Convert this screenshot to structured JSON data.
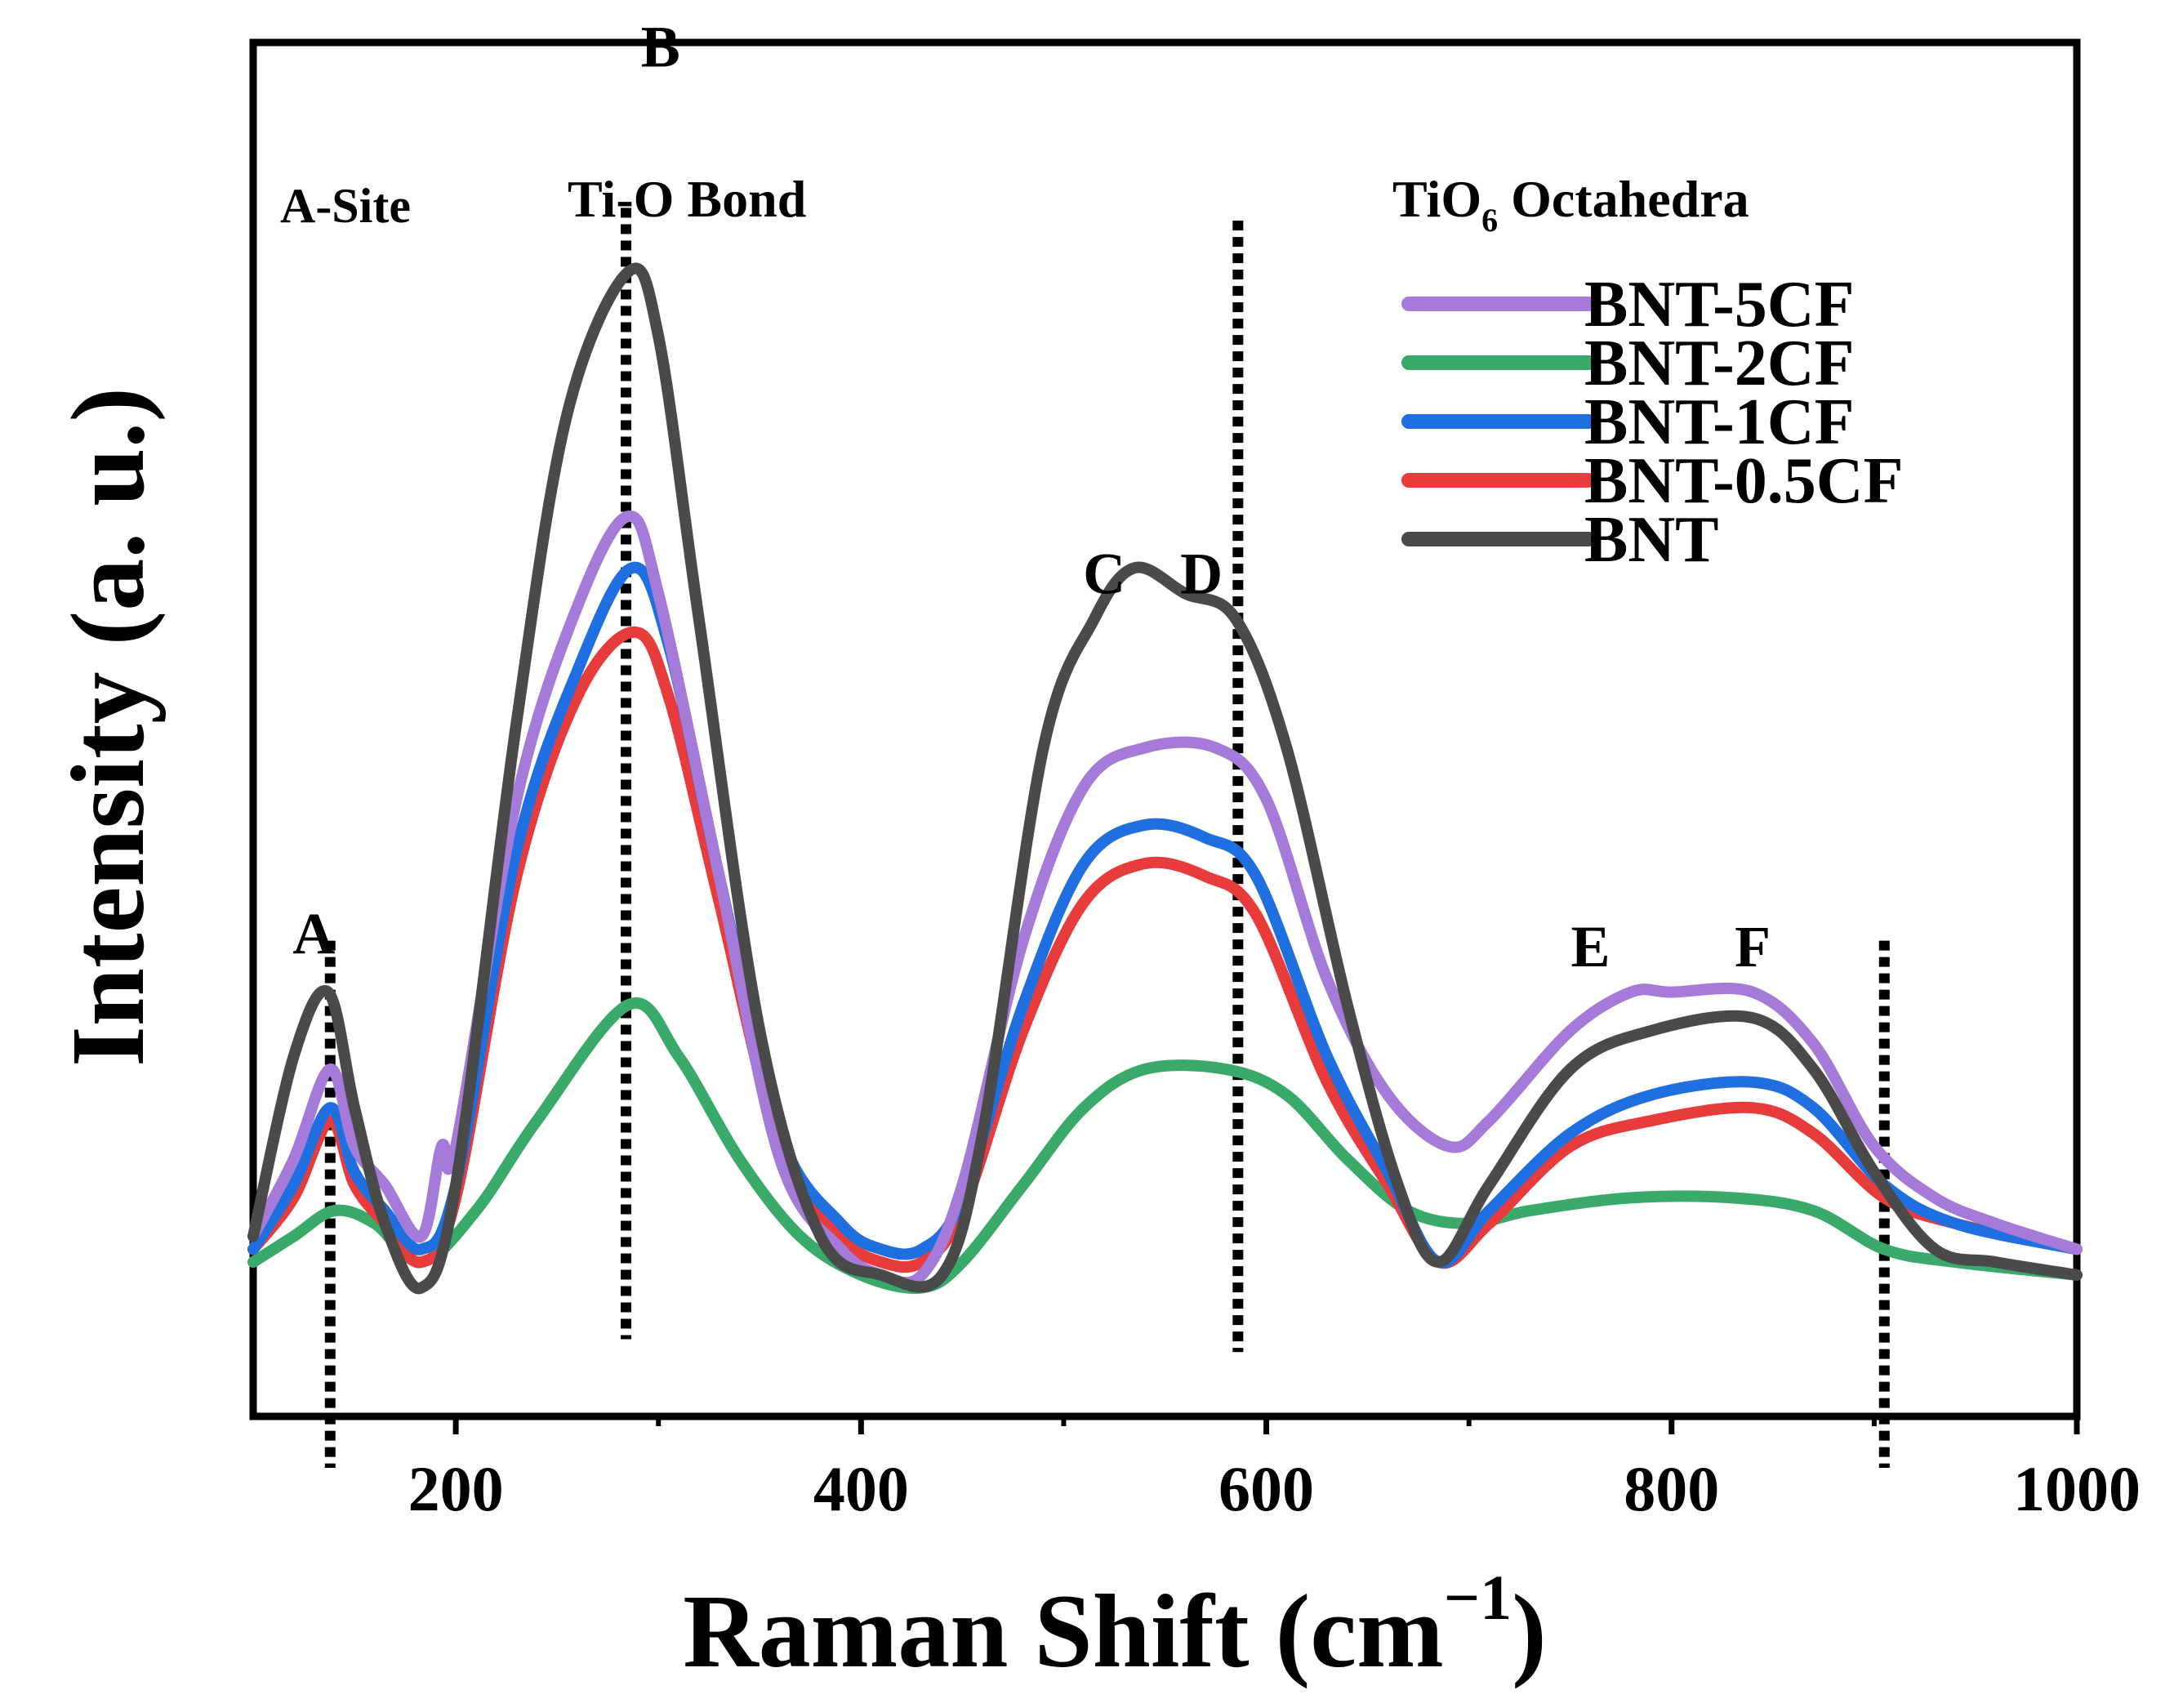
{
  "chart_data": {
    "type": "line",
    "xlabel": "Raman Shift (cm",
    "xlabel_sup": "−1",
    "xlabel_close": ")",
    "ylabel": "Intensity (a. u.)",
    "xlim": [
      100,
      1000
    ],
    "ylim": [
      0,
      100
    ],
    "x_ticks": [
      200,
      400,
      600,
      800,
      1000
    ],
    "y_ticks_shown": false,
    "grid": false,
    "legend_position": "top-right",
    "region_labels": [
      {
        "id": "a-site",
        "text": "A-Site"
      },
      {
        "id": "ti-o",
        "text": "Ti-O Bond"
      },
      {
        "id": "tio6",
        "text": "TiO",
        "sub": "6",
        "rest": " Octahedra"
      }
    ],
    "reference_lines_x": [
      138,
      284,
      586,
      905
    ],
    "peak_labels": [
      {
        "label": "A",
        "x": 130,
        "y": 36
      },
      {
        "label": "B",
        "x": 301,
        "y": 105
      },
      {
        "label": "C",
        "x": 520,
        "y": 64
      },
      {
        "label": "D",
        "x": 568,
        "y": 64
      },
      {
        "label": "E",
        "x": 760,
        "y": 35
      },
      {
        "label": "F",
        "x": 840,
        "y": 35
      }
    ],
    "series": [
      {
        "name": "BNT-5CF",
        "color": "#a57ad8",
        "points": [
          [
            100,
            14
          ],
          [
            120,
            20
          ],
          [
            138,
            27
          ],
          [
            150,
            21
          ],
          [
            165,
            18
          ],
          [
            183,
            14
          ],
          [
            193,
            21
          ],
          [
            200,
            21
          ],
          [
            230,
            48
          ],
          [
            260,
            63
          ],
          [
            285,
            70
          ],
          [
            300,
            64
          ],
          [
            330,
            42
          ],
          [
            360,
            20
          ],
          [
            390,
            13
          ],
          [
            410,
            11
          ],
          [
            430,
            11
          ],
          [
            450,
            18
          ],
          [
            480,
            37
          ],
          [
            510,
            49
          ],
          [
            540,
            52
          ],
          [
            575,
            52
          ],
          [
            600,
            48
          ],
          [
            630,
            34
          ],
          [
            660,
            25
          ],
          [
            690,
            21
          ],
          [
            710,
            23
          ],
          [
            750,
            30
          ],
          [
            780,
            33
          ],
          [
            800,
            33
          ],
          [
            840,
            33
          ],
          [
            870,
            29
          ],
          [
            900,
            21
          ],
          [
            930,
            17
          ],
          [
            960,
            15
          ],
          [
            1000,
            13
          ]
        ]
      },
      {
        "name": "BNT-2CF",
        "color": "#3aaa6a",
        "points": [
          [
            100,
            12
          ],
          [
            120,
            14
          ],
          [
            140,
            16
          ],
          [
            160,
            15
          ],
          [
            183,
            12
          ],
          [
            210,
            16
          ],
          [
            240,
            23
          ],
          [
            285,
            32
          ],
          [
            310,
            28
          ],
          [
            340,
            20
          ],
          [
            370,
            14
          ],
          [
            400,
            11
          ],
          [
            430,
            10
          ],
          [
            450,
            12
          ],
          [
            480,
            18
          ],
          [
            510,
            24
          ],
          [
            540,
            27
          ],
          [
            580,
            27
          ],
          [
            610,
            25
          ],
          [
            640,
            20
          ],
          [
            670,
            16
          ],
          [
            700,
            15
          ],
          [
            730,
            16
          ],
          [
            780,
            17
          ],
          [
            830,
            17
          ],
          [
            870,
            16
          ],
          [
            905,
            13
          ],
          [
            940,
            12
          ],
          [
            1000,
            11
          ]
        ]
      },
      {
        "name": "BNT-1CF",
        "color": "#1f6fe0",
        "points": [
          [
            100,
            13
          ],
          [
            120,
            18
          ],
          [
            138,
            24
          ],
          [
            150,
            19
          ],
          [
            165,
            16
          ],
          [
            183,
            13
          ],
          [
            200,
            18
          ],
          [
            230,
            44
          ],
          [
            260,
            58
          ],
          [
            287,
            66
          ],
          [
            305,
            60
          ],
          [
            330,
            42
          ],
          [
            360,
            22
          ],
          [
            390,
            15
          ],
          [
            410,
            13
          ],
          [
            430,
            13
          ],
          [
            450,
            17
          ],
          [
            480,
            32
          ],
          [
            510,
            43
          ],
          [
            540,
            46
          ],
          [
            570,
            45
          ],
          [
            595,
            42
          ],
          [
            630,
            28
          ],
          [
            660,
            19
          ],
          [
            685,
            12
          ],
          [
            710,
            16
          ],
          [
            750,
            22
          ],
          [
            790,
            25
          ],
          [
            840,
            26
          ],
          [
            870,
            24
          ],
          [
            905,
            18
          ],
          [
            940,
            15
          ],
          [
            1000,
            13
          ]
        ]
      },
      {
        "name": "BNT-0.5CF",
        "color": "#e83c3c",
        "points": [
          [
            100,
            13
          ],
          [
            120,
            17
          ],
          [
            138,
            23
          ],
          [
            150,
            18
          ],
          [
            165,
            15
          ],
          [
            183,
            12
          ],
          [
            200,
            17
          ],
          [
            230,
            42
          ],
          [
            260,
            56
          ],
          [
            288,
            61
          ],
          [
            305,
            56
          ],
          [
            330,
            40
          ],
          [
            360,
            21
          ],
          [
            390,
            14
          ],
          [
            410,
            12
          ],
          [
            430,
            12
          ],
          [
            450,
            16
          ],
          [
            480,
            30
          ],
          [
            510,
            40
          ],
          [
            540,
            43
          ],
          [
            570,
            42
          ],
          [
            595,
            39
          ],
          [
            630,
            26
          ],
          [
            660,
            18
          ],
          [
            685,
            12
          ],
          [
            710,
            15
          ],
          [
            750,
            21
          ],
          [
            790,
            23
          ],
          [
            840,
            24
          ],
          [
            870,
            22
          ],
          [
            905,
            17
          ],
          [
            940,
            15
          ],
          [
            1000,
            13
          ]
        ]
      },
      {
        "name": "BNT",
        "color": "#4a4a4a",
        "points": [
          [
            100,
            14
          ],
          [
            120,
            28
          ],
          [
            137,
            33
          ],
          [
            150,
            24
          ],
          [
            165,
            15
          ],
          [
            183,
            10
          ],
          [
            200,
            18
          ],
          [
            230,
            54
          ],
          [
            255,
            78
          ],
          [
            285,
            89
          ],
          [
            300,
            84
          ],
          [
            320,
            62
          ],
          [
            350,
            30
          ],
          [
            380,
            14
          ],
          [
            410,
            11
          ],
          [
            440,
            11
          ],
          [
            460,
            22
          ],
          [
            490,
            52
          ],
          [
            515,
            62
          ],
          [
            535,
            66
          ],
          [
            560,
            64
          ],
          [
            585,
            62
          ],
          [
            610,
            52
          ],
          [
            640,
            32
          ],
          [
            665,
            18
          ],
          [
            685,
            12
          ],
          [
            710,
            18
          ],
          [
            750,
            27
          ],
          [
            790,
            30
          ],
          [
            840,
            31
          ],
          [
            870,
            27
          ],
          [
            900,
            19
          ],
          [
            930,
            13
          ],
          [
            960,
            12
          ],
          [
            1000,
            11
          ]
        ]
      }
    ]
  }
}
